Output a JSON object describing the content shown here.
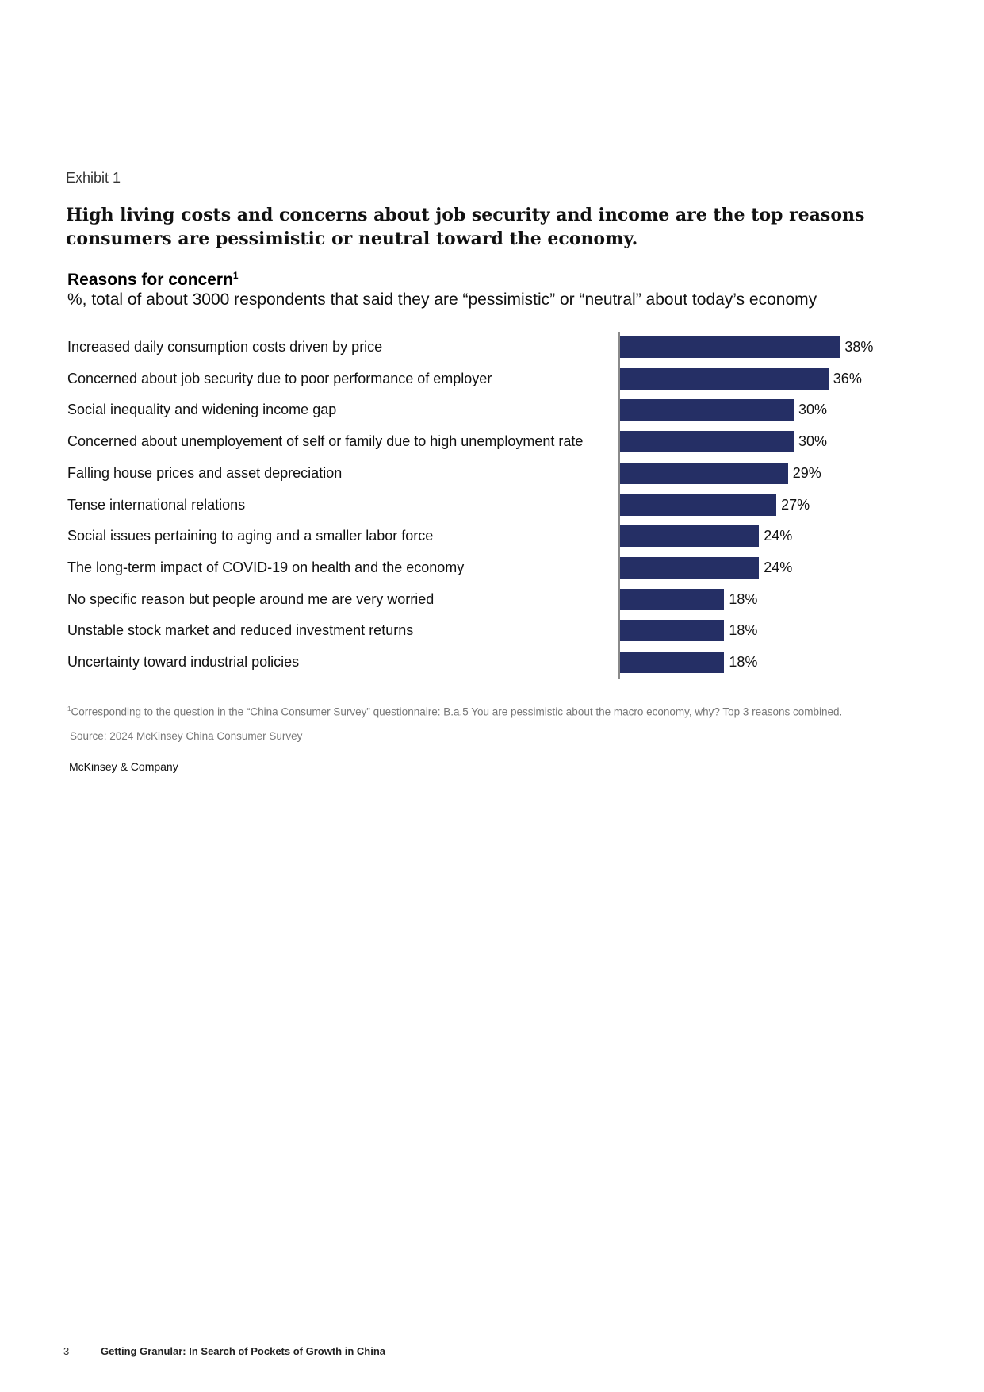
{
  "page": {
    "exhibit_label": "Exhibit 1",
    "headline": "High living costs and concerns about job security and income are the top reasons consumers are pessimistic or neutral toward the economy.",
    "footnote": "Corresponding to the question in the “China Consumer Survey” questionnaire: B.a.5 You are pessimistic about the macro economy, why? Top 3 reasons combined.",
    "footnote_marker": "1",
    "source": "Source: 2024 McKinsey China Consumer Survey",
    "company": "McKinsey & Company",
    "page_number": "3",
    "report_title": "Getting Granular: In Search of Pockets of Growth in China"
  },
  "chart_data": {
    "type": "bar",
    "orientation": "horizontal",
    "title": "Reasons for concern",
    "title_superscript": "1",
    "subtitle": "%, total of about 3000 respondents that said they are “pessimistic” or “neutral” about today’s economy",
    "categories": [
      "Increased daily consumption costs driven by price",
      "Concerned about job security due to poor performance of employer",
      "Social inequality and widening income gap",
      "Concerned about unemployement of self or family due to high unemployment rate",
      "Falling house prices and asset depreciation",
      "Tense international relations",
      "Social issues pertaining to aging and a smaller labor force",
      "The long-term impact of COVID-19 on health and the economy",
      "No specific reason but people around me are very worried",
      "Unstable stock market and reduced investment returns",
      "Uncertainty toward industrial policies"
    ],
    "values": [
      38,
      36,
      30,
      30,
      29,
      27,
      24,
      24,
      18,
      18,
      18
    ],
    "value_labels": [
      "38%",
      "36%",
      "30%",
      "30%",
      "29%",
      "27%",
      "24%",
      "24%",
      "18%",
      "18%",
      "18%"
    ],
    "xlim": [
      0,
      40
    ],
    "bar_color": "#252f65",
    "grid": false,
    "legend": "none"
  }
}
